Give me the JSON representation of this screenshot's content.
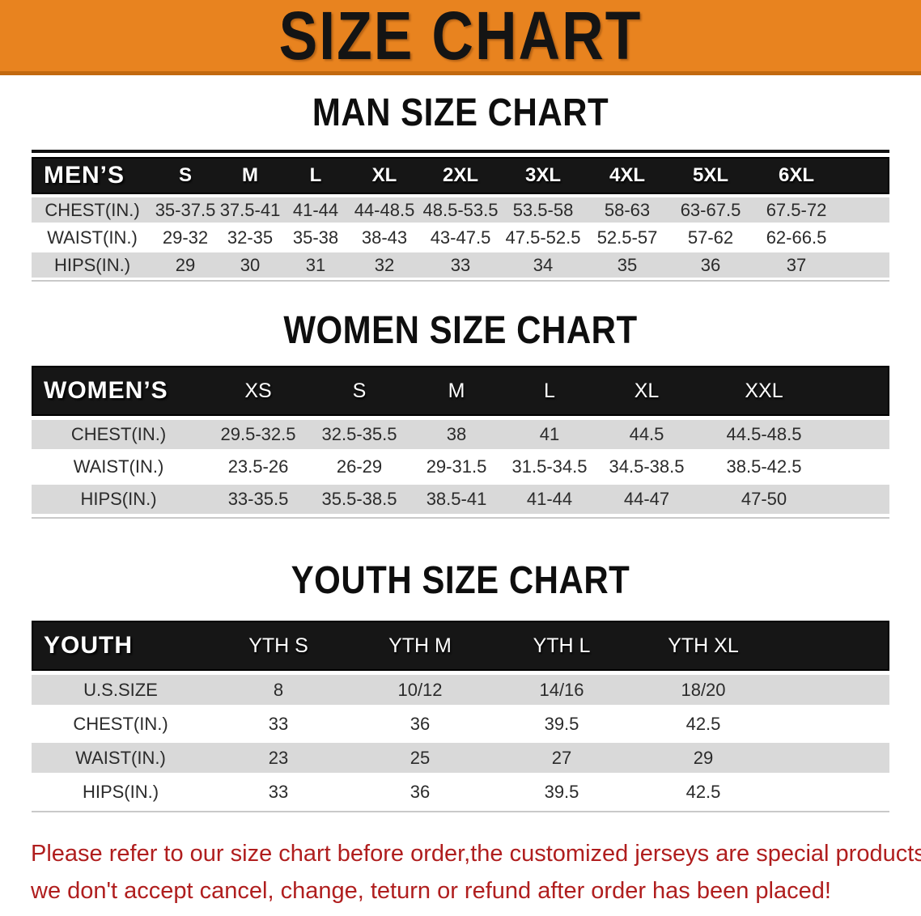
{
  "banner": {
    "title": "SIZE CHART"
  },
  "colors": {
    "banner_bg": "#E8831F",
    "banner_edge": "#C2690F",
    "bar_bg": "#161616",
    "row_gray": "#D9D9D9",
    "disclaimer_red": "#B01E1E"
  },
  "sections": [
    {
      "id": "men",
      "heading": "MAN SIZE CHART",
      "table": {
        "header_label": "MEN’S",
        "columns": [
          "S",
          "M",
          "L",
          "XL",
          "2XL",
          "3XL",
          "4XL",
          "5XL",
          "6XL"
        ],
        "rows": [
          {
            "label": "CHEST(IN.)",
            "values": [
              "35-37.5",
              "37.5-41",
              "41-44",
              "44-48.5",
              "48.5-53.5",
              "53.5-58",
              "58-63",
              "63-67.5",
              "67.5-72"
            ]
          },
          {
            "label": "WAIST(IN.)",
            "values": [
              "29-32",
              "32-35",
              "35-38",
              "38-43",
              "43-47.5",
              "47.5-52.5",
              "52.5-57",
              "57-62",
              "62-66.5"
            ]
          },
          {
            "label": "HIPS(IN.)",
            "values": [
              "29",
              "30",
              "31",
              "32",
              "33",
              "34",
              "35",
              "36",
              "37"
            ]
          }
        ]
      }
    },
    {
      "id": "women",
      "heading": "WOMEN SIZE CHART",
      "table": {
        "header_label": "WOMEN’S",
        "columns": [
          "XS",
          "S",
          "M",
          "L",
          "XL",
          "XXL"
        ],
        "rows": [
          {
            "label": "CHEST(IN.)",
            "values": [
              "29.5-32.5",
              "32.5-35.5",
              "38",
              "41",
              "44.5",
              "44.5-48.5"
            ]
          },
          {
            "label": "WAIST(IN.)",
            "values": [
              "23.5-26",
              "26-29",
              "29-31.5",
              "31.5-34.5",
              "34.5-38.5",
              "38.5-42.5"
            ]
          },
          {
            "label": "HIPS(IN.)",
            "values": [
              "33-35.5",
              "35.5-38.5",
              "38.5-41",
              "41-44",
              "44-47",
              "47-50"
            ]
          }
        ]
      }
    },
    {
      "id": "youth",
      "heading": "YOUTH SIZE CHART",
      "table": {
        "header_label": "YOUTH",
        "columns": [
          "YTH S",
          "YTH M",
          "YTH L",
          "YTH XL"
        ],
        "rows": [
          {
            "label": "U.S.SIZE",
            "values": [
              "8",
              "10/12",
              "14/16",
              "18/20"
            ]
          },
          {
            "label": "CHEST(IN.)",
            "values": [
              "33",
              "36",
              "39.5",
              "42.5"
            ]
          },
          {
            "label": "WAIST(IN.)",
            "values": [
              "23",
              "25",
              "27",
              "29"
            ]
          },
          {
            "label": "HIPS(IN.)",
            "values": [
              "33",
              "36",
              "39.5",
              "42.5"
            ]
          }
        ]
      }
    }
  ],
  "disclaimer": {
    "lines": [
      "Please refer to our size chart before order,the customized jerseys are special products,",
      "we don't accept cancel, change, teturn or refund after order has been placed!"
    ]
  }
}
